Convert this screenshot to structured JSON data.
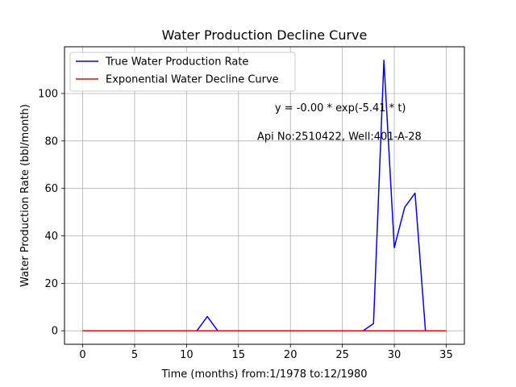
{
  "chart_data": {
    "type": "line",
    "title": "Water Production Decline Curve",
    "xlabel": "Time (months) from:1/1978 to:12/1980",
    "ylabel": "Water Production Rate (bbl/month)",
    "xlim": [
      -1.75,
      36.75
    ],
    "ylim": [
      -5.7,
      119.7
    ],
    "xticks": [
      0,
      5,
      10,
      15,
      20,
      25,
      30,
      35
    ],
    "yticks": [
      0,
      20,
      40,
      60,
      80,
      100
    ],
    "grid": true,
    "legend_position": "top-left",
    "series": [
      {
        "name": "True Water Production Rate",
        "color": "#0000ff",
        "x": [
          0,
          1,
          2,
          3,
          4,
          5,
          6,
          7,
          8,
          9,
          10,
          11,
          12,
          13,
          14,
          15,
          16,
          17,
          18,
          19,
          20,
          21,
          22,
          23,
          24,
          25,
          26,
          27,
          28,
          29,
          30,
          31,
          32,
          33,
          34,
          35
        ],
        "values": [
          0,
          0,
          0,
          0,
          0,
          0,
          0,
          0,
          0,
          0,
          0,
          0,
          6,
          0,
          0,
          0,
          0,
          0,
          0,
          0,
          0,
          0,
          0,
          0,
          0,
          0,
          0,
          0,
          3,
          114,
          35,
          52,
          58,
          0,
          0,
          0
        ]
      },
      {
        "name": "Exponential Water Decline Curve",
        "color": "#ff0000",
        "x": [
          0,
          1,
          2,
          3,
          4,
          5,
          6,
          7,
          8,
          9,
          10,
          11,
          12,
          13,
          14,
          15,
          16,
          17,
          18,
          19,
          20,
          21,
          22,
          23,
          24,
          25,
          26,
          27,
          28,
          29,
          30,
          31,
          32,
          33,
          34,
          35
        ],
        "values": [
          0,
          0,
          0,
          0,
          0,
          0,
          0,
          0,
          0,
          0,
          0,
          0,
          0,
          0,
          0,
          0,
          0,
          0,
          0,
          0,
          0,
          0,
          0,
          0,
          0,
          0,
          0,
          0,
          0,
          0,
          0,
          0,
          0,
          0,
          0,
          0
        ]
      }
    ],
    "annotations": [
      {
        "text": "y = -0.00 * exp(-5.41 * t)",
        "x": 18.5,
        "y": 92.5
      },
      {
        "text": "Api No:2510422, Well:401-A-28",
        "x": 16.8,
        "y": 80.5
      }
    ]
  }
}
